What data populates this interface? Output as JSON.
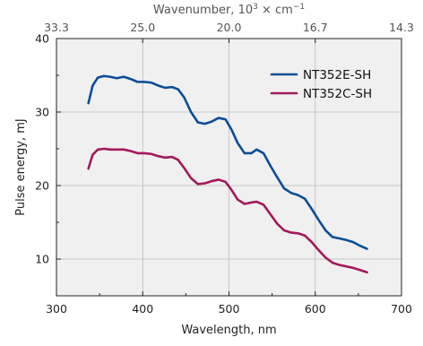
{
  "chart_data": {
    "type": "line",
    "xlabel": "Wavelength, nm",
    "ylabel": "Pulse energy, mJ",
    "top_xlabel_base": "Wavenumber, 10",
    "top_xlabel_exp": "3",
    "top_xlabel_mid": " × cm",
    "top_xlabel_exp2": "−1",
    "xlim": [
      300,
      700
    ],
    "ylim": [
      5,
      40
    ],
    "x_ticks": [
      300,
      400,
      500,
      600,
      700
    ],
    "x_tick_labels": [
      "300",
      "400",
      "500",
      "600",
      "700"
    ],
    "y_ticks": [
      10,
      20,
      30,
      40
    ],
    "y_tick_labels": [
      "10",
      "20",
      "30",
      "40"
    ],
    "top_ticks_wavelength": [
      300,
      400,
      500,
      600,
      700
    ],
    "top_tick_labels": [
      "33.3",
      "25.0",
      "20.0",
      "16.7",
      "14.3"
    ],
    "grid": true,
    "legend_position": "top-right",
    "series": [
      {
        "name": "NT352E-SH",
        "color": "#0a4d99",
        "x": [
          337,
          342,
          348,
          355,
          362,
          370,
          378,
          386,
          394,
          402,
          410,
          418,
          426,
          434,
          441,
          448,
          456,
          464,
          472,
          480,
          488,
          496,
          503,
          510,
          518,
          526,
          532,
          540,
          548,
          556,
          564,
          572,
          580,
          588,
          596,
          604,
          612,
          620,
          628,
          636,
          644,
          652,
          660
        ],
        "y": [
          31.2,
          33.6,
          34.7,
          34.9,
          34.8,
          34.6,
          34.8,
          34.5,
          34.1,
          34.1,
          34.0,
          33.6,
          33.3,
          33.4,
          33.1,
          32.0,
          30.0,
          28.6,
          28.4,
          28.7,
          29.2,
          29.0,
          27.6,
          25.8,
          24.4,
          24.4,
          24.9,
          24.4,
          22.7,
          21.1,
          19.6,
          19.0,
          18.7,
          18.2,
          16.8,
          15.3,
          13.9,
          13.0,
          12.8,
          12.6,
          12.3,
          11.8,
          11.4
        ]
      },
      {
        "name": "NT352C-SH",
        "color": "#a3185a",
        "x": [
          337,
          342,
          348,
          355,
          362,
          370,
          378,
          386,
          394,
          402,
          410,
          418,
          426,
          434,
          441,
          448,
          456,
          464,
          472,
          480,
          488,
          496,
          503,
          510,
          518,
          526,
          532,
          540,
          548,
          556,
          564,
          572,
          580,
          588,
          596,
          604,
          612,
          620,
          628,
          636,
          644,
          652,
          660
        ],
        "y": [
          22.3,
          24.2,
          24.9,
          25.0,
          24.9,
          24.9,
          24.9,
          24.7,
          24.4,
          24.4,
          24.3,
          24.0,
          23.8,
          23.9,
          23.5,
          22.4,
          21.0,
          20.2,
          20.3,
          20.6,
          20.8,
          20.5,
          19.4,
          18.1,
          17.5,
          17.7,
          17.8,
          17.4,
          16.1,
          14.8,
          13.9,
          13.6,
          13.5,
          13.2,
          12.3,
          11.2,
          10.2,
          9.5,
          9.2,
          9.0,
          8.8,
          8.5,
          8.2
        ]
      }
    ]
  }
}
